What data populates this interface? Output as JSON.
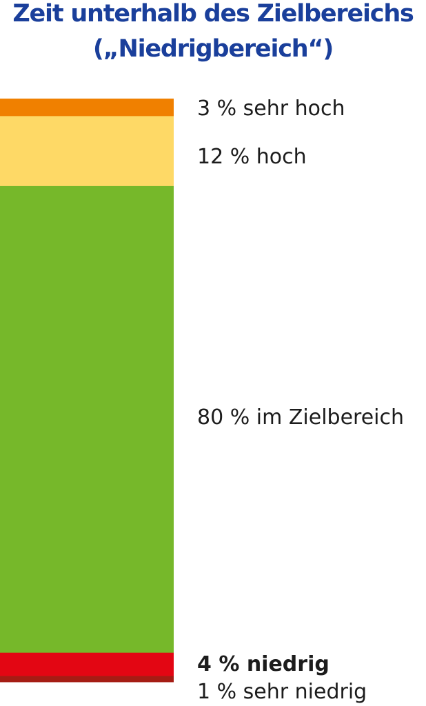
{
  "title": {
    "line1": "Zeit unterhalb des Zielbereichs",
    "line2": "(„Niedrigbereich“)"
  },
  "chart_data": {
    "type": "bar",
    "stacked": true,
    "orientation": "vertical",
    "unit": "%",
    "segments": [
      {
        "value": 3,
        "label": "3 % sehr hoch",
        "color": "#f08000",
        "emphasis": false
      },
      {
        "value": 12,
        "label": "12 % hoch",
        "color": "#fed966",
        "emphasis": false
      },
      {
        "value": 80,
        "label": "80 % im Zielbereich",
        "color": "#76b82a",
        "emphasis": false
      },
      {
        "value": 4,
        "label": "4 % niedrig",
        "color": "#e30613",
        "emphasis": true
      },
      {
        "value": 1,
        "label": "1 % sehr niedrig",
        "color": "#a51c14",
        "emphasis": false
      }
    ],
    "axes_visible": false,
    "legend": "labels to the right of segments"
  }
}
